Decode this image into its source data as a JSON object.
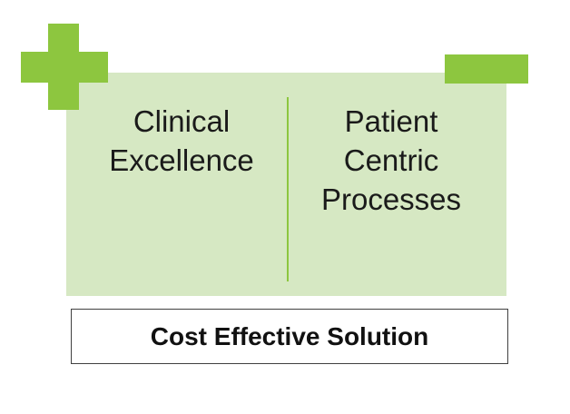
{
  "colors": {
    "accent": "#8dc63f",
    "panel": "#d6e8c3",
    "text": "#1a1a1a"
  },
  "icons": {
    "top_left": "plus-icon",
    "top_right": "minus-icon"
  },
  "left_column": {
    "lines": [
      "Clinical",
      "Excellence"
    ]
  },
  "right_column": {
    "lines": [
      "Patient",
      "Centric",
      "Processes"
    ]
  },
  "bottom": {
    "label": "Cost Effective Solution"
  }
}
